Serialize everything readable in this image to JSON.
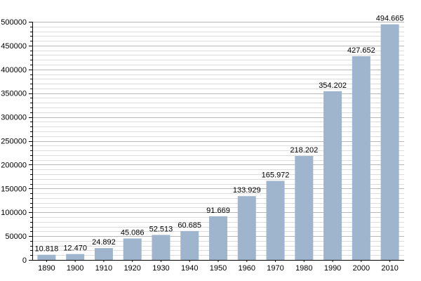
{
  "chart_data": {
    "type": "bar",
    "categories": [
      "1890",
      "1900",
      "1910",
      "1920",
      "1930",
      "1940",
      "1950",
      "1960",
      "1970",
      "1980",
      "1990",
      "2000",
      "2010"
    ],
    "values": [
      10818,
      12470,
      24892,
      45086,
      52513,
      60685,
      91669,
      133929,
      165972,
      218202,
      354202,
      427652,
      494665
    ],
    "data_labels": [
      "10.818",
      "12.470",
      "24.892",
      "45.086",
      "52.513",
      "60.685",
      "91.669",
      "133.929",
      "165.972",
      "218.202",
      "354.202",
      "427.652",
      "494.665"
    ],
    "y_ticks": [
      "0",
      "50000",
      "100000",
      "150000",
      "200000",
      "250000",
      "300000",
      "350000",
      "400000",
      "450000",
      "500000"
    ],
    "ylim": [
      0,
      500000
    ],
    "major_tick_step": 50000,
    "minor_gridline_step": 10000,
    "grid": true,
    "title": "",
    "xlabel": "",
    "ylabel": ""
  },
  "colors": {
    "bar": "#9fb5cd",
    "major_grid": "#b8b8b8",
    "minor_grid": "#dcdcdc",
    "axis": "#000000",
    "text": "#000000"
  }
}
